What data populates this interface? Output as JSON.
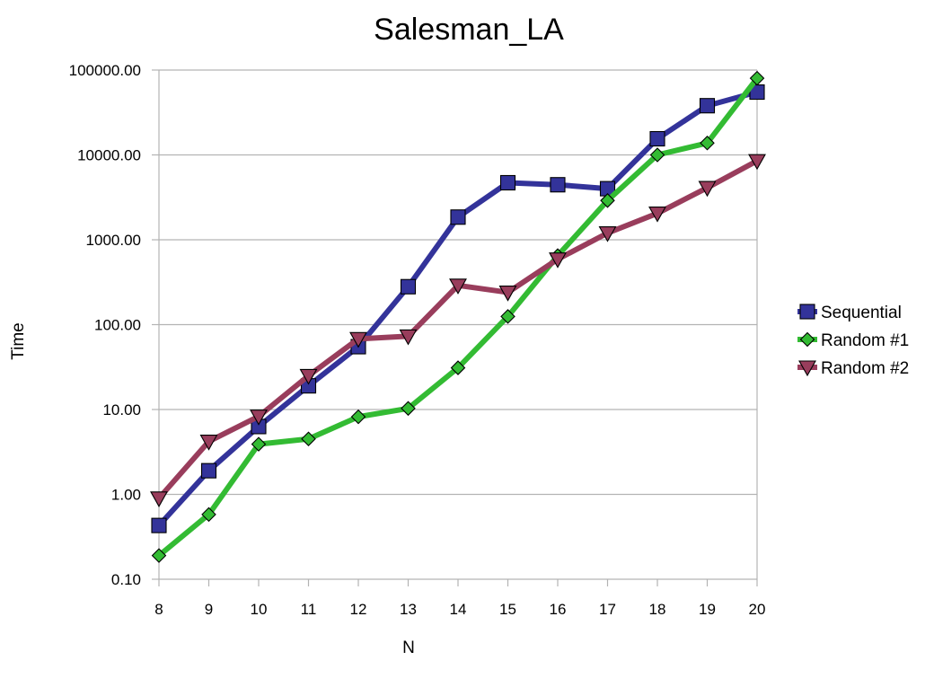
{
  "chart_data": {
    "type": "line",
    "title": "Salesman_LA",
    "xlabel": "N",
    "ylabel": "Time",
    "x": [
      8,
      9,
      10,
      11,
      12,
      13,
      14,
      15,
      16,
      17,
      18,
      19,
      20
    ],
    "x_tick_labels": [
      "8",
      "9",
      "10",
      "11",
      "12",
      "13",
      "14",
      "15",
      "16",
      "17",
      "18",
      "19",
      "20"
    ],
    "y_scale": "log",
    "ylim": [
      0.1,
      100000
    ],
    "y_ticks": [
      0.1,
      1,
      10,
      100,
      1000,
      10000,
      100000
    ],
    "y_tick_labels": [
      "0.10",
      "1.00",
      "10.00",
      "100.00",
      "1000.00",
      "10000.00",
      "100000.00"
    ],
    "grid": "horizontal",
    "legend": "right",
    "series": [
      {
        "name": "Sequential",
        "color": "#33339a",
        "marker": "square",
        "values": [
          0.43,
          1.9,
          6.3,
          19,
          55,
          280,
          1850,
          4700,
          4450,
          4000,
          15500,
          38000,
          55000
        ]
      },
      {
        "name": "Random #1",
        "color": "#33bb33",
        "marker": "diamond",
        "values": [
          0.19,
          0.58,
          3.9,
          4.5,
          8.2,
          10.3,
          31,
          125,
          650,
          2900,
          10000,
          13800,
          80000
        ]
      },
      {
        "name": "Random #2",
        "color": "#993d5c",
        "marker": "triangle-down",
        "values": [
          0.9,
          4.2,
          8.3,
          25,
          68,
          73,
          290,
          240,
          590,
          1200,
          2050,
          4100,
          8500
        ]
      }
    ]
  }
}
